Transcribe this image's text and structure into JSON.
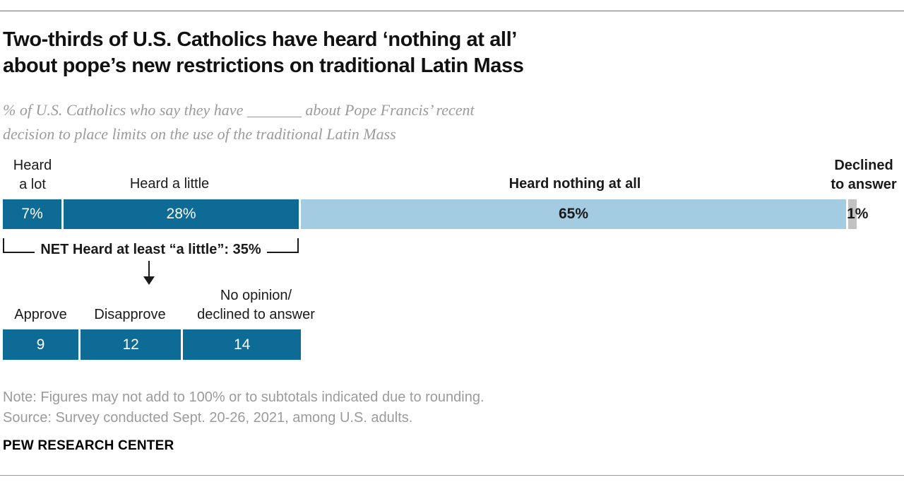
{
  "header": {
    "title_line1": "Two-thirds of U.S. Catholics have heard ‘nothing at all’",
    "title_line2": "about pope’s new restrictions on traditional Latin Mass",
    "subtitle_line1": "% of U.S. Catholics who say they have _______ about Pope Francis’ recent",
    "subtitle_line2": "decision to place limits on the use of the traditional Latin Mass"
  },
  "colors": {
    "dark_blue": "#0d6b96",
    "light_blue": "#a3cce3",
    "gray_segment": "#c2c2c2",
    "muted_text": "#9b9b9b"
  },
  "chart_data": [
    {
      "type": "bar",
      "subtype": "stacked-horizontal",
      "title": "Two-thirds of U.S. Catholics have heard ‘nothing at all’ about pope’s new restrictions on traditional Latin Mass",
      "subtitle": "% of U.S. Catholics who say they have _______ about Pope Francis’ recent decision to place limits on the use of the traditional Latin Mass",
      "categories": [
        "Heard a lot",
        "Heard a little",
        "Heard nothing at all",
        "Declined to answer"
      ],
      "values": [
        7,
        28,
        65,
        1
      ],
      "unit": "%",
      "annotations": [
        "NET Heard at least “a little”: 35%"
      ],
      "legend_position": "above-bar",
      "grid": false
    },
    {
      "type": "bar",
      "subtype": "stacked-horizontal",
      "categories": [
        "Approve",
        "Disapprove",
        "No opinion/declined to answer"
      ],
      "values": [
        9,
        12,
        14
      ],
      "grid": false
    }
  ],
  "main_chart": {
    "category_labels": {
      "heard_a_lot": "Heard\na lot",
      "heard_a_little": "Heard a little",
      "heard_nothing": "Heard nothing at all",
      "declined": "Declined\nto answer"
    },
    "segments": [
      {
        "name": "heard-a-lot",
        "value": 7,
        "display": "7%",
        "fill": "#0d6b96",
        "text_color": "#ffffff",
        "bold": false
      },
      {
        "name": "heard-a-little",
        "value": 28,
        "display": "28%",
        "fill": "#0d6b96",
        "text_color": "#ffffff",
        "bold": false
      },
      {
        "name": "heard-nothing-at-all",
        "value": 65,
        "display": "65%",
        "fill": "#a3cce3",
        "text_color": "#1a1a1a",
        "bold": true
      },
      {
        "name": "declined-to-answer",
        "value": 1,
        "display": "",
        "fill": "#c2c2c2",
        "text_color": "#1a1a1a",
        "bold": true
      }
    ],
    "declined_value_label": "1%",
    "net_label": "NET Heard at least “a little”: 35%"
  },
  "followup_chart": {
    "category_labels": {
      "approve": "Approve",
      "disapprove": "Disapprove",
      "no_opinion": "No opinion/\ndeclined to answer"
    },
    "segments": [
      {
        "name": "approve",
        "value": 9,
        "display": "9",
        "fill": "#0d6b96",
        "text_color": "#ffffff",
        "bold": false
      },
      {
        "name": "disapprove",
        "value": 12,
        "display": "12",
        "fill": "#0d6b96",
        "text_color": "#ffffff",
        "bold": false
      },
      {
        "name": "no-opinion-declined",
        "value": 14,
        "display": "14",
        "fill": "#0d6b96",
        "text_color": "#ffffff",
        "bold": false
      }
    ]
  },
  "footer": {
    "note": "Note: Figures may not add to 100% or to subtotals indicated due to rounding.",
    "source": "Source: Survey conducted Sept. 20-26, 2021, among U.S. adults.",
    "brand": "PEW RESEARCH CENTER"
  }
}
